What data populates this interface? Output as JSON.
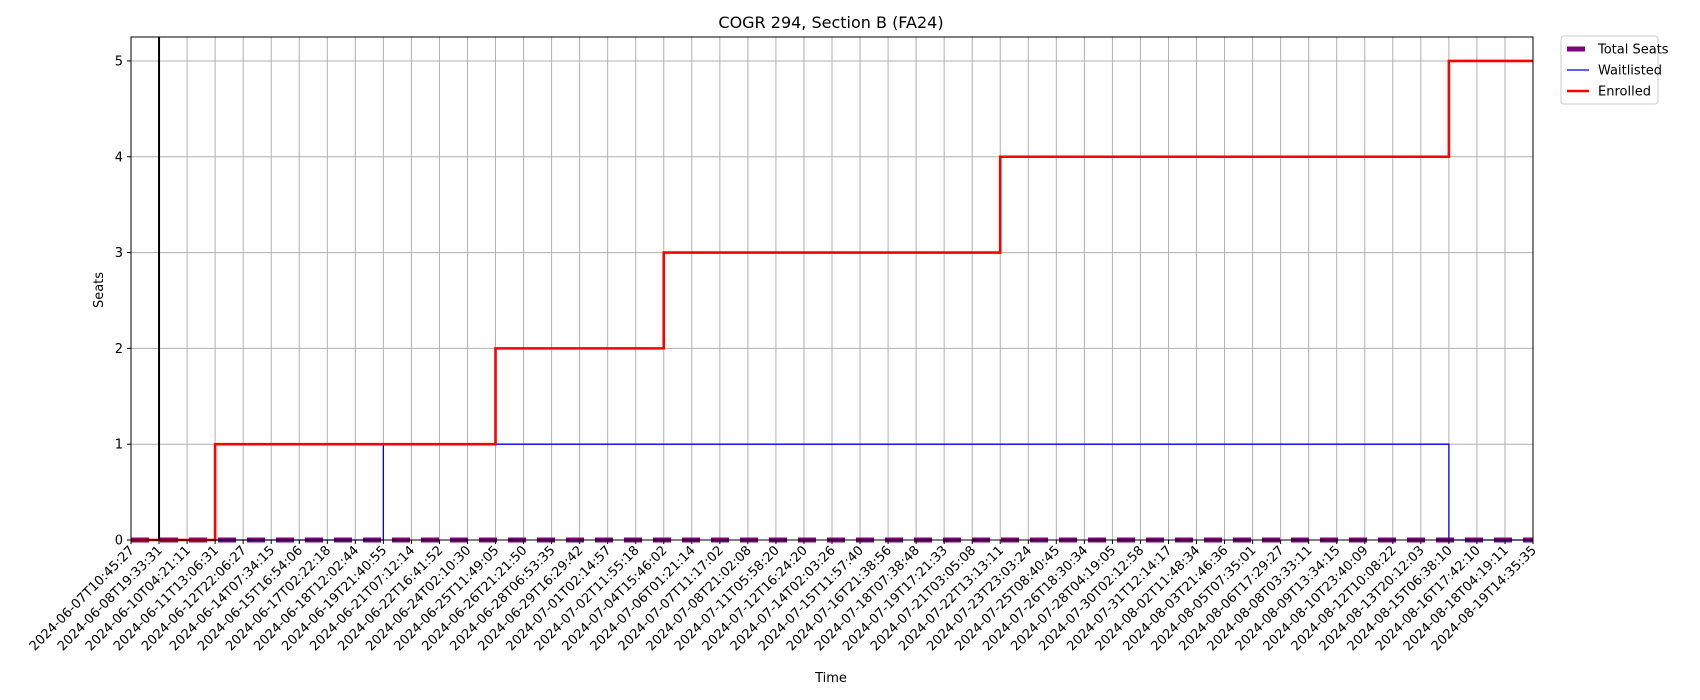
{
  "chart_data": {
    "type": "line",
    "title": "COGR 294, Section B (FA24)",
    "xlabel": "Time",
    "ylabel": "Seats",
    "ylim": [
      0,
      5.25
    ],
    "y_ticks": [
      0,
      1,
      2,
      3,
      4,
      5
    ],
    "grid": true,
    "legend_placement": "outside-top-right",
    "categories": [
      "2024-06-07T10:45:27",
      "2024-06-08T19:33:31",
      "2024-06-10T04:21:11",
      "2024-06-11T13:06:31",
      "2024-06-12T22:06:27",
      "2024-06-14T07:34:15",
      "2024-06-15T16:54:06",
      "2024-06-17T02:22:18",
      "2024-06-18T12:02:44",
      "2024-06-19T21:40:55",
      "2024-06-21T07:12:14",
      "2024-06-22T16:41:52",
      "2024-06-24T02:10:30",
      "2024-06-25T11:49:05",
      "2024-06-26T21:21:50",
      "2024-06-28T06:53:35",
      "2024-06-29T16:29:42",
      "2024-07-01T02:14:57",
      "2024-07-02T11:55:18",
      "2024-07-04T15:46:02",
      "2024-07-06T01:21:14",
      "2024-07-07T11:17:02",
      "2024-07-08T21:02:08",
      "2024-07-11T05:58:20",
      "2024-07-12T16:24:20",
      "2024-07-14T02:03:26",
      "2024-07-15T11:57:40",
      "2024-07-16T21:38:56",
      "2024-07-18T07:38:48",
      "2024-07-19T17:21:33",
      "2024-07-21T03:05:08",
      "2024-07-22T13:13:11",
      "2024-07-23T23:03:24",
      "2024-07-25T08:40:45",
      "2024-07-26T18:30:34",
      "2024-07-28T04:19:05",
      "2024-07-30T02:12:58",
      "2024-07-31T12:14:17",
      "2024-08-02T11:48:34",
      "2024-08-03T21:46:36",
      "2024-08-05T07:35:01",
      "2024-08-06T17:29:27",
      "2024-08-08T03:33:11",
      "2024-08-09T13:34:15",
      "2024-08-10T23:40:09",
      "2024-08-12T10:08:22",
      "2024-08-13T20:12:03",
      "2024-08-15T06:38:10",
      "2024-08-16T17:42:10",
      "2024-08-18T04:19:11",
      "2024-08-19T14:35:35"
    ],
    "vertical_marker_index": 1,
    "series": [
      {
        "name": "Total Seats",
        "color": "#800080",
        "style": "dashed-thick",
        "values": [
          0,
          0,
          0,
          0,
          0,
          0,
          0,
          0,
          0,
          0,
          0,
          0,
          0,
          0,
          0,
          0,
          0,
          0,
          0,
          0,
          0,
          0,
          0,
          0,
          0,
          0,
          0,
          0,
          0,
          0,
          0,
          0,
          0,
          0,
          0,
          0,
          0,
          0,
          0,
          0,
          0,
          0,
          0,
          0,
          0,
          0,
          0,
          0,
          0,
          0,
          0
        ]
      },
      {
        "name": "Waitlisted",
        "color": "#0000ff",
        "style": "step-thin",
        "values": [
          0,
          0,
          0,
          0,
          0,
          0,
          0,
          0,
          0,
          1,
          1,
          1,
          1,
          1,
          1,
          1,
          1,
          1,
          1,
          1,
          1,
          1,
          1,
          1,
          1,
          1,
          1,
          1,
          1,
          1,
          1,
          1,
          1,
          1,
          1,
          1,
          1,
          1,
          1,
          1,
          1,
          1,
          1,
          1,
          1,
          1,
          1,
          0,
          0,
          0,
          0
        ]
      },
      {
        "name": "Enrolled",
        "color": "#ff0000",
        "style": "step-thick",
        "values": [
          0,
          0,
          0,
          1,
          1,
          1,
          1,
          1,
          1,
          1,
          1,
          1,
          1,
          2,
          2,
          2,
          2,
          2,
          2,
          3,
          3,
          3,
          3,
          3,
          3,
          3,
          3,
          3,
          3,
          3,
          3,
          4,
          4,
          4,
          4,
          4,
          4,
          4,
          4,
          4,
          4,
          4,
          4,
          4,
          4,
          4,
          4,
          5,
          5,
          5,
          5
        ]
      }
    ]
  }
}
